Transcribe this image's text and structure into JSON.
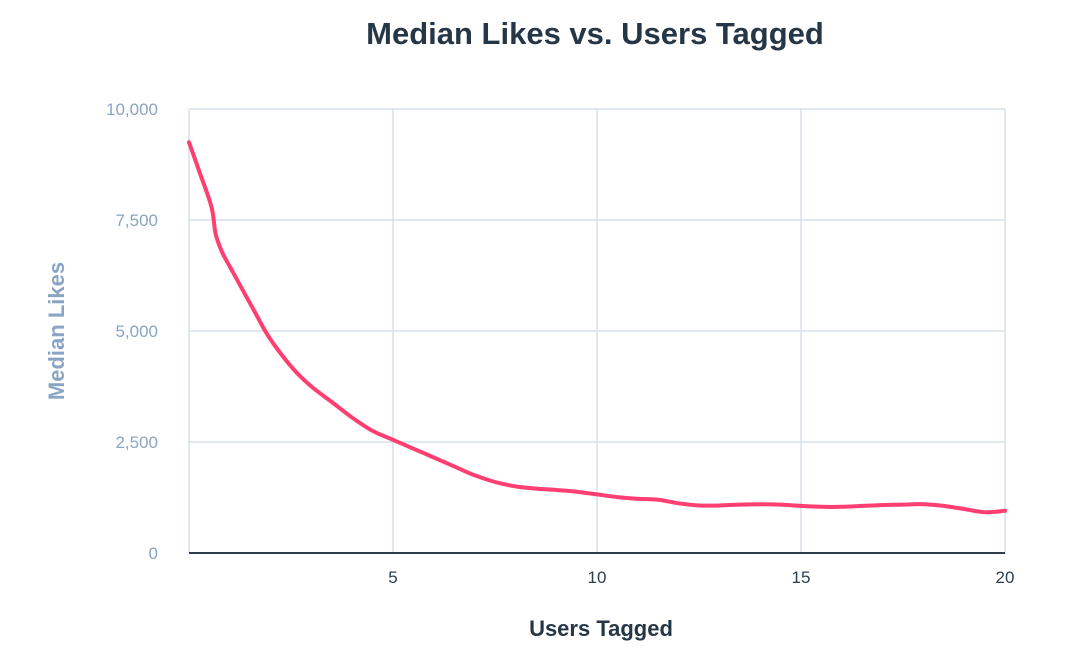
{
  "colors": {
    "title": "#253746",
    "y_axis_text": "#8aa4c4",
    "x_axis_text": "#2d3e50",
    "grid": "#d7e0ea",
    "series": "#ff3f71"
  },
  "chart_data": {
    "type": "line",
    "title": "Median Likes vs. Users Tagged",
    "xlabel": "Users Tagged",
    "ylabel": "Median Likes",
    "xlim": [
      0,
      20
    ],
    "ylim": [
      0,
      10000
    ],
    "x_ticks": [
      5,
      10,
      15,
      20
    ],
    "x_tick_labels": [
      "5",
      "10",
      "15",
      "20"
    ],
    "y_ticks": [
      0,
      2500,
      5000,
      7500,
      10000
    ],
    "y_tick_labels": [
      "0",
      "2,500",
      "5,000",
      "7,500",
      "10,000"
    ],
    "grid": true,
    "legend": "none",
    "series": [
      {
        "x": [
          0,
          0.25,
          0.55,
          0.65,
          0.8,
          1.0,
          1.3,
          1.6,
          1.9,
          2.2,
          2.6,
          3.0,
          3.5,
          4.0,
          4.5,
          5.0,
          5.5,
          6.0,
          6.5,
          7.0,
          7.5,
          8.0,
          8.5,
          9.0,
          9.5,
          10.0,
          10.5,
          11.0,
          11.5,
          12.0,
          12.5,
          13.0,
          13.5,
          14.0,
          14.5,
          15.0,
          15.5,
          16.0,
          16.5,
          17.0,
          17.5,
          18.0,
          18.5,
          19.0,
          19.5,
          20.0
        ],
        "values": [
          9250,
          8600,
          7800,
          7200,
          6800,
          6450,
          5950,
          5450,
          4950,
          4550,
          4100,
          3750,
          3400,
          3050,
          2750,
          2550,
          2350,
          2150,
          1950,
          1750,
          1600,
          1500,
          1450,
          1420,
          1380,
          1320,
          1260,
          1220,
          1200,
          1120,
          1070,
          1070,
          1090,
          1100,
          1090,
          1060,
          1040,
          1040,
          1060,
          1080,
          1090,
          1100,
          1060,
          990,
          920,
          950
        ]
      }
    ]
  }
}
